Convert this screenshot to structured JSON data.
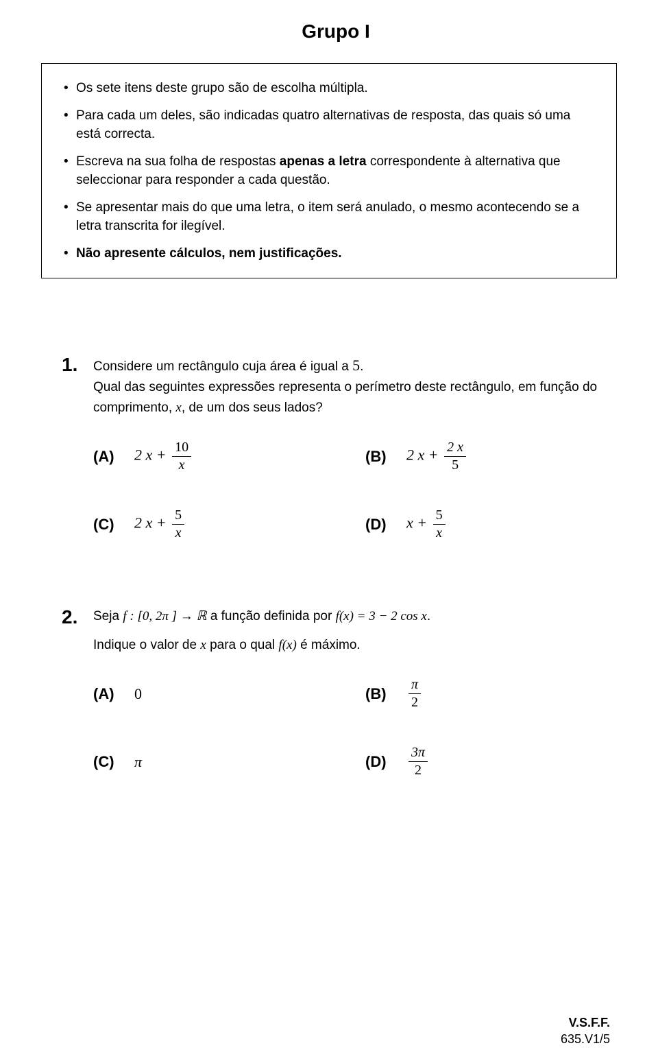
{
  "title": "Grupo I",
  "instructions": {
    "items": [
      "Os sete itens deste grupo são de escolha múltipla.",
      "Para cada um deles, são indicadas quatro alternativas de resposta, das quais só uma está correcta.",
      "Escreva na sua folha de respostas <b>apenas a letra</b> correspondente à alternativa que seleccionar para responder a cada questão.",
      "Se apresentar mais do que uma letra, o item será anulado, o mesmo acontecendo se a letra transcrita for ilegível.",
      "<b>Não apresente cálculos, nem justificações.</b>"
    ]
  },
  "q1": {
    "number": "1.",
    "line1_pre": "Considere um rectângulo cuja área é igual a ",
    "line1_val": "5",
    "line1_post": ".",
    "line2_pre": "Qual das seguintes expressões representa o perímetro deste rectângulo, em função do comprimento, ",
    "line2_var": "x",
    "line2_post": ",  de um dos seus lados?",
    "opts": {
      "A": {
        "label": "(A)",
        "expr_left": "2 x  +",
        "frac_num": "10",
        "frac_den": "x"
      },
      "B": {
        "label": "(B)",
        "expr_left": "2 x  +",
        "frac_num": "2 x",
        "frac_den": "5"
      },
      "C": {
        "label": "(C)",
        "expr_left": "2 x  +",
        "frac_num": "5",
        "frac_den": "x"
      },
      "D": {
        "label": "(D)",
        "expr_left": "x  +",
        "frac_num": "5",
        "frac_den": "x"
      }
    }
  },
  "q2": {
    "number": "2.",
    "line1_a": "Seja  ",
    "line1_f": "f : [0, 2π ] → ℝ",
    "line1_b": "  a função definida por  ",
    "line1_eq": "f(x) = 3 − 2 cos x",
    "line1_c": ".",
    "line2_a": "Indique o valor de  ",
    "line2_x": "x",
    "line2_b": "  para o qual  ",
    "line2_fx": "f(x)",
    "line2_c": "  é máximo.",
    "opts": {
      "A": {
        "label": "(A)",
        "val": "0"
      },
      "B": {
        "label": "(B)",
        "frac_num": "π",
        "frac_den": "2"
      },
      "C": {
        "label": "(C)",
        "val": "π"
      },
      "D": {
        "label": "(D)",
        "frac_num": "3π",
        "frac_den": "2"
      }
    }
  },
  "footer": {
    "line1": "V.S.F.F.",
    "line2": "635.V1/5"
  },
  "colors": {
    "text": "#000000",
    "background": "#ffffff",
    "border": "#000000"
  },
  "fonts": {
    "body_family": "Arial",
    "math_family": "Times New Roman",
    "title_size_pt": 21,
    "body_size_pt": 14,
    "qnum_size_pt": 21,
    "option_label_weight": "bold"
  }
}
